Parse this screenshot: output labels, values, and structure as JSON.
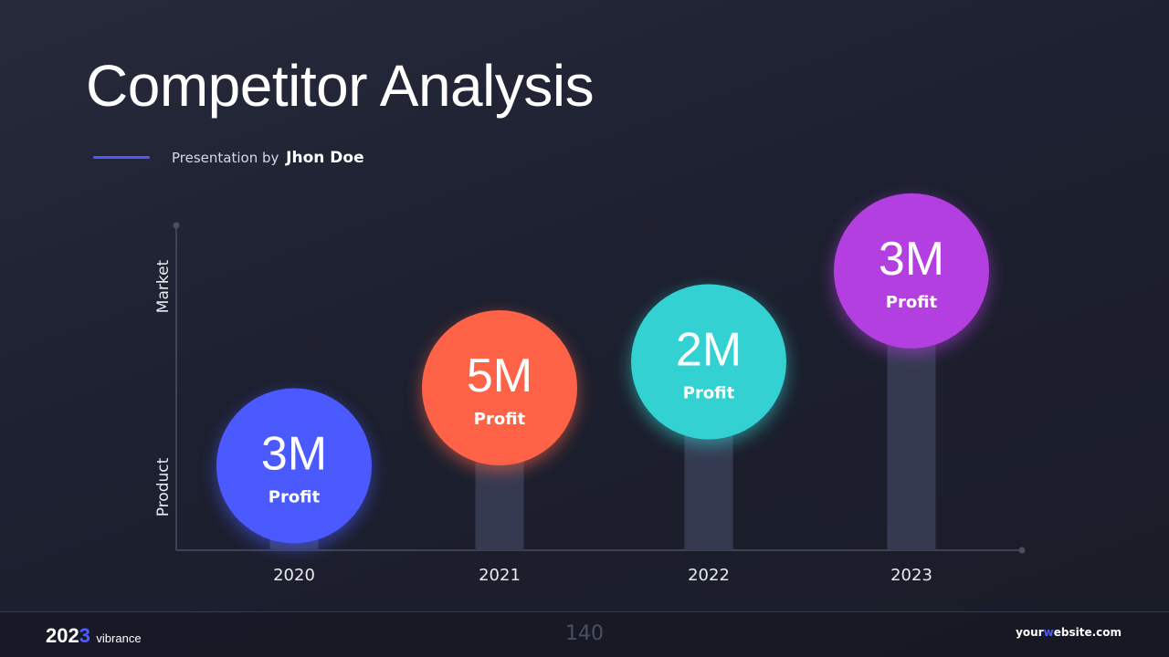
{
  "header": {
    "title": "Competitor Analysis",
    "byline_prefix": "Presentation by",
    "author": "Jhon Doe"
  },
  "chart_data": {
    "type": "bar",
    "categories": [
      "2020",
      "2021",
      "2022",
      "2023"
    ],
    "values": [
      3,
      5,
      2,
      3
    ],
    "labels": [
      "3M",
      "5M",
      "2M",
      "3M"
    ],
    "sublabel": "Profit",
    "ylabel_top": "Market",
    "ylabel_bottom": "Product",
    "bar_heights": [
      0.26,
      0.5,
      0.58,
      0.86
    ],
    "colors": [
      "#4a5aff",
      "#ff6347",
      "#33d1d1",
      "#b43fe0"
    ],
    "track_color": "#353a51",
    "axis_color": "#4a4e60"
  },
  "footer": {
    "brand_year_a": "202",
    "brand_year_b": "3",
    "brand_word": "vibrance",
    "page_number": "140",
    "website_a": "your",
    "website_b": "w",
    "website_c": "ebsite.com"
  }
}
